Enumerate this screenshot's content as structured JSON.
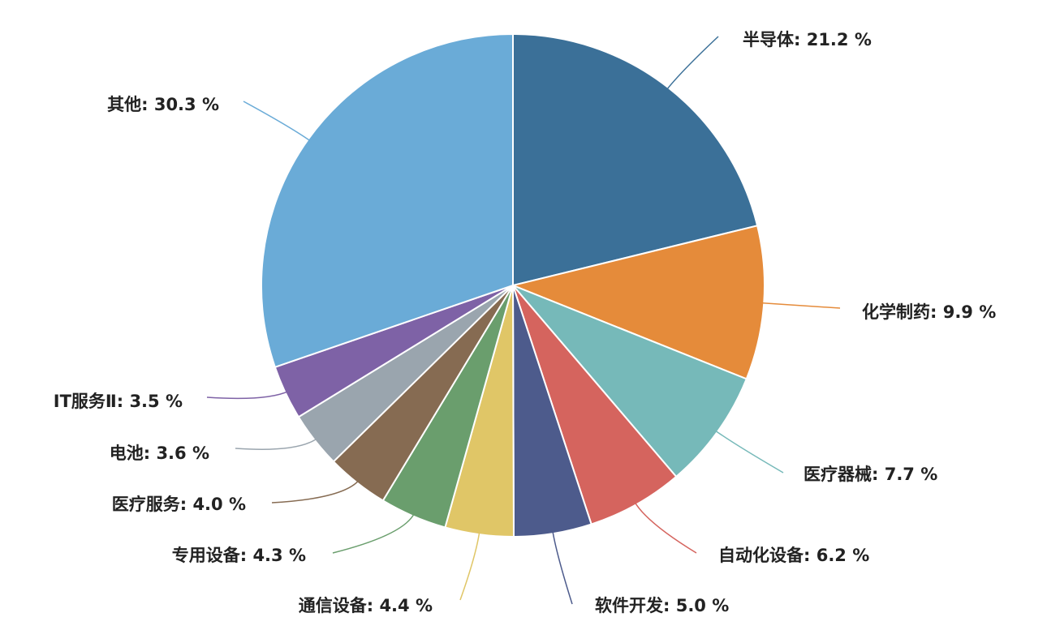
{
  "chart_data": {
    "type": "pie",
    "labels": [
      "半导体: 21.2 %",
      "化学制药: 9.9 %",
      "医疗器械: 7.7 %",
      "自动化设备: 6.2 %",
      "软件开发: 5.0 %",
      "通信设备: 4.4 %",
      "专用设备: 4.3 %",
      "医疗服务: 4.0 %",
      "电池: 3.6 %",
      "IT服务Ⅱ: 3.5 %",
      "其他: 30.3 %"
    ],
    "values": [
      21.2,
      9.9,
      7.7,
      6.2,
      5.0,
      4.4,
      4.3,
      4.0,
      3.6,
      3.5,
      30.3
    ],
    "colors": [
      "#3b7098",
      "#e58b3a",
      "#76b9b9",
      "#d5645e",
      "#4d5b8c",
      "#e0c667",
      "#6a9e6d",
      "#866b52",
      "#9aa5ae",
      "#7e62a6",
      "#6aabd7"
    ]
  }
}
